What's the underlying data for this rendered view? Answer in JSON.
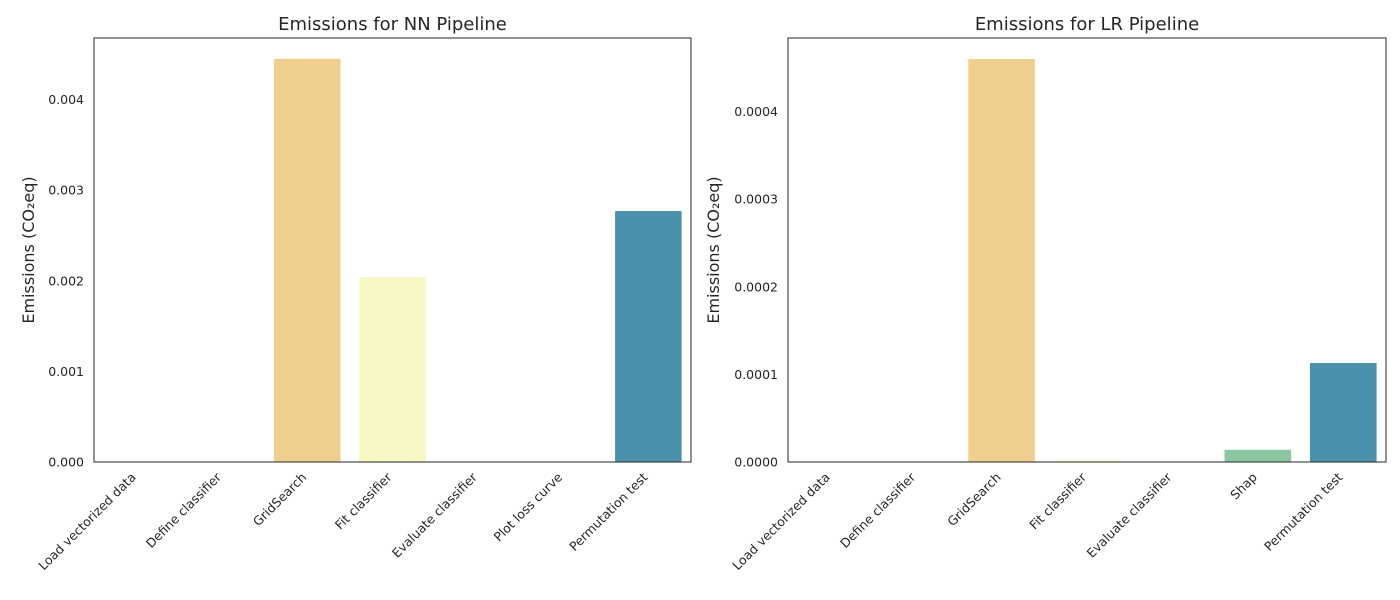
{
  "chart_data": [
    {
      "type": "bar",
      "title": "Emissions for NN Pipeline",
      "xlabel": "",
      "ylabel": "Emissions (CO₂eq)",
      "categories": [
        "Load vectorized data",
        "Define classifier",
        "GridSearch",
        "Fit classifier",
        "Evaluate classifier",
        "Plot loss curve",
        "Permutation test"
      ],
      "values": [
        0.0,
        0.0,
        0.00445,
        0.00204,
        0.0,
        0.0,
        0.00277
      ],
      "colors": [
        "#d7191c",
        "#fdae61",
        "#f0cf8e",
        "#f8f8c4",
        "#b5dfa6",
        "#8ac6a0",
        "#4a91ab"
      ],
      "ylim": [
        0,
        0.00468
      ],
      "yticks": [
        0.0,
        0.001,
        0.002,
        0.003,
        0.004
      ],
      "ytick_labels": [
        "0.000",
        "0.001",
        "0.002",
        "0.003",
        "0.004"
      ],
      "grid": false
    },
    {
      "type": "bar",
      "title": "Emissions for LR Pipeline",
      "xlabel": "",
      "ylabel": "Emissions (CO₂eq)",
      "categories": [
        "Load vectorized data",
        "Define classifier",
        "GridSearch",
        "Fit classifier",
        "Evaluate classifier",
        "Shap",
        "Permutation test"
      ],
      "values": [
        0.0,
        0.0,
        0.00046,
        1.5e-06,
        0.0,
        1.4e-05,
        0.000113
      ],
      "colors": [
        "#d7191c",
        "#fdae61",
        "#f0cf8e",
        "#f8f8c4",
        "#b5dfa6",
        "#8ac6a0",
        "#4a91ab"
      ],
      "ylim": [
        0,
        0.000484
      ],
      "yticks": [
        0.0,
        0.0001,
        0.0002,
        0.0003,
        0.0004
      ],
      "ytick_labels": [
        "0.0000",
        "0.0001",
        "0.0002",
        "0.0003",
        "0.0004"
      ],
      "grid": false
    }
  ]
}
